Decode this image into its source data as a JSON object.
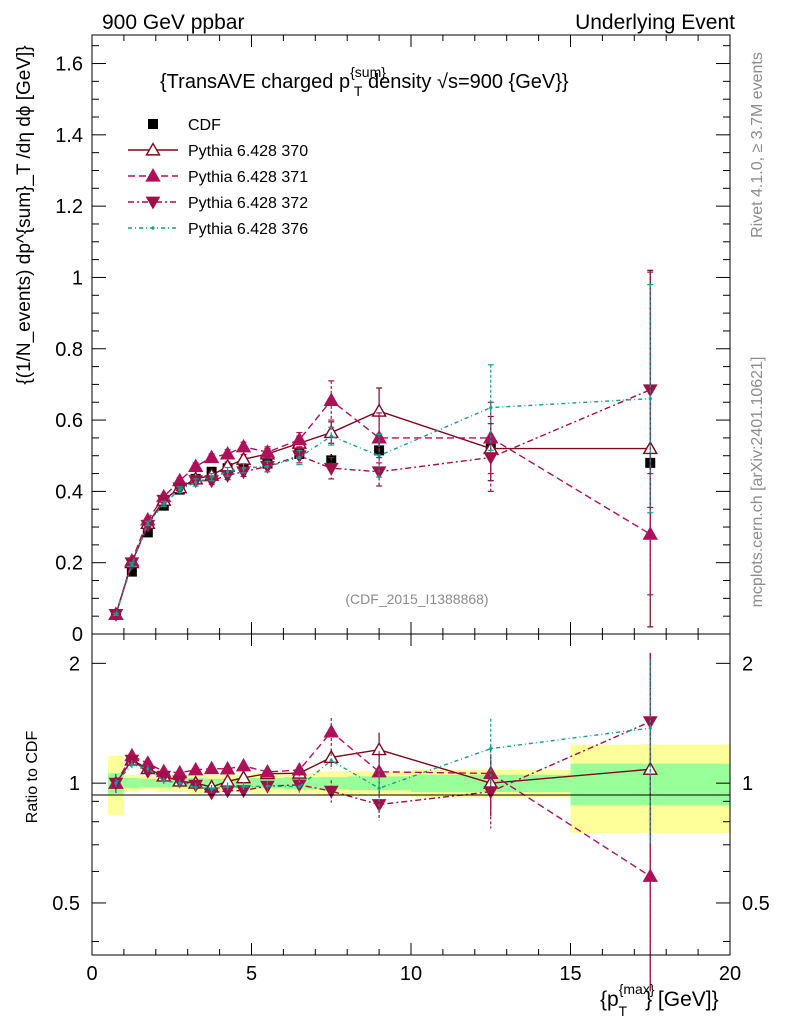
{
  "header": {
    "left": "900 GeV ppbar",
    "right": "Underlying Event"
  },
  "side": {
    "rivet": "Rivet 4.1.0, ≥ 3.7M events",
    "mcplots": "mcplots.cern.ch [arXiv:2401.10621]"
  },
  "chart_data": {
    "type": "scatter",
    "title_parts": {
      "a": "{TransAVE charged p",
      "sup": "{sum}",
      "sub": "T",
      "b": " density √s=900 {GeV}}"
    },
    "watermark": "(CDF_2015_I1388868)",
    "ylabel_main": "{(1/N_events) dp^{sum}_T /dη  dϕ [GeV]}",
    "ylabel_ratio": "Ratio to CDF",
    "xlabel_parts": {
      "a": "{p",
      "sup": "{max}",
      "sub": "T",
      "b": "} [GeV]}"
    },
    "xlim": [
      0,
      20
    ],
    "ylim_main": [
      0,
      1.68
    ],
    "ylim_ratio": [
      0.37,
      2.37
    ],
    "x_ticks": [
      "0",
      "5",
      "10",
      "15",
      "20"
    ],
    "y_ticks_main": [
      "0",
      "0.2",
      "0.4",
      "0.6",
      "0.8",
      "1",
      "1.2",
      "1.4",
      "1.6"
    ],
    "y_ticks_ratio": [
      "0.5",
      "1",
      "2"
    ],
    "legend": [
      {
        "label": "CDF"
      },
      {
        "label": "Pythia 6.428 370"
      },
      {
        "label": "Pythia 6.428 371"
      },
      {
        "label": "Pythia 6.428 372"
      },
      {
        "label": "Pythia 6.428 376"
      }
    ],
    "data": {
      "name": "CDF",
      "color": "#000000",
      "x": [
        0.75,
        1.25,
        1.75,
        2.25,
        2.75,
        3.25,
        3.75,
        4.25,
        4.75,
        5.5,
        6.5,
        7.5,
        9.0,
        12.5,
        17.5
      ],
      "xlo": [
        0.5,
        1.0,
        1.5,
        2.0,
        2.5,
        3.0,
        3.5,
        4.0,
        4.5,
        5.0,
        6.0,
        7.0,
        8.0,
        10.0,
        15.0
      ],
      "xhi": [
        1.0,
        1.5,
        2.0,
        2.5,
        3.0,
        3.5,
        4.0,
        4.5,
        5.0,
        6.0,
        7.0,
        8.0,
        10.0,
        15.0,
        20.0
      ],
      "y": [
        0.055,
        0.175,
        0.285,
        0.36,
        0.405,
        0.435,
        0.455,
        0.465,
        0.475,
        0.478,
        0.505,
        0.487,
        0.515,
        0.52,
        0.48
      ],
      "err": [
        0.004,
        0.006,
        0.008,
        0.009,
        0.01,
        0.01,
        0.01,
        0.01,
        0.012,
        0.012,
        0.015,
        0.018,
        0.022,
        0.03,
        0.04
      ],
      "band_inner": [
        0.06,
        0.03,
        0.025,
        0.025,
        0.025,
        0.03,
        0.025,
        0.025,
        0.03,
        0.03,
        0.035,
        0.035,
        0.04,
        0.05,
        0.12
      ],
      "band_outer": [
        0.17,
        0.05,
        0.04,
        0.05,
        0.05,
        0.06,
        0.05,
        0.05,
        0.05,
        0.06,
        0.06,
        0.07,
        0.07,
        0.08,
        0.25
      ]
    },
    "series": [
      {
        "name": "Pythia 6.428 370",
        "color": "#7a0a1c",
        "dash": "",
        "marker": "tri-up-open",
        "x": [
          0.75,
          1.25,
          1.75,
          2.25,
          2.75,
          3.25,
          3.75,
          4.25,
          4.75,
          5.5,
          6.5,
          7.5,
          9.0,
          12.5,
          17.5
        ],
        "y": [
          0.055,
          0.2,
          0.31,
          0.375,
          0.41,
          0.435,
          0.445,
          0.47,
          0.49,
          0.505,
          0.535,
          0.565,
          0.625,
          0.52,
          0.52
        ],
        "err": [
          0.003,
          0.005,
          0.006,
          0.007,
          0.008,
          0.01,
          0.01,
          0.012,
          0.013,
          0.015,
          0.02,
          0.03,
          0.065,
          0.09,
          0.5
        ]
      },
      {
        "name": "Pythia 6.428 371",
        "color": "#b0105a",
        "dash": "7,4",
        "marker": "tri-up",
        "x": [
          0.75,
          1.25,
          1.75,
          2.25,
          2.75,
          3.25,
          3.75,
          4.25,
          4.75,
          5.5,
          6.5,
          7.5,
          9.0,
          12.5,
          17.5
        ],
        "y": [
          0.055,
          0.205,
          0.32,
          0.385,
          0.43,
          0.47,
          0.495,
          0.505,
          0.525,
          0.51,
          0.545,
          0.655,
          0.55,
          0.55,
          0.28
        ],
        "err": [
          0.003,
          0.005,
          0.006,
          0.007,
          0.008,
          0.01,
          0.01,
          0.012,
          0.013,
          0.015,
          0.02,
          0.055,
          0.07,
          0.1,
          0.17
        ]
      },
      {
        "name": "Pythia 6.428 372",
        "color": "#a01048",
        "dash": "6,3,2,3",
        "marker": "tri-down",
        "x": [
          0.75,
          1.25,
          1.75,
          2.25,
          2.75,
          3.25,
          3.75,
          4.25,
          4.75,
          5.5,
          6.5,
          7.5,
          9.0,
          12.5,
          17.5
        ],
        "y": [
          0.055,
          0.2,
          0.305,
          0.375,
          0.41,
          0.43,
          0.43,
          0.445,
          0.455,
          0.47,
          0.5,
          0.465,
          0.455,
          0.495,
          0.685
        ],
        "err": [
          0.003,
          0.005,
          0.006,
          0.007,
          0.008,
          0.01,
          0.01,
          0.012,
          0.013,
          0.015,
          0.02,
          0.03,
          0.04,
          0.095,
          0.33
        ]
      },
      {
        "name": "Pythia 6.428 376",
        "color": "#10a090",
        "dash": "4,3,1,3",
        "marker": "dot",
        "x": [
          0.75,
          1.25,
          1.75,
          2.25,
          2.75,
          3.25,
          3.75,
          4.25,
          4.75,
          5.5,
          6.5,
          7.5,
          9.0,
          12.5,
          17.5
        ],
        "y": [
          0.055,
          0.195,
          0.31,
          0.365,
          0.405,
          0.425,
          0.44,
          0.455,
          0.465,
          0.47,
          0.495,
          0.555,
          0.5,
          0.635,
          0.66
        ],
        "err": [
          0.003,
          0.005,
          0.006,
          0.007,
          0.008,
          0.01,
          0.01,
          0.012,
          0.013,
          0.015,
          0.02,
          0.025,
          0.06,
          0.12,
          0.32
        ]
      }
    ]
  }
}
